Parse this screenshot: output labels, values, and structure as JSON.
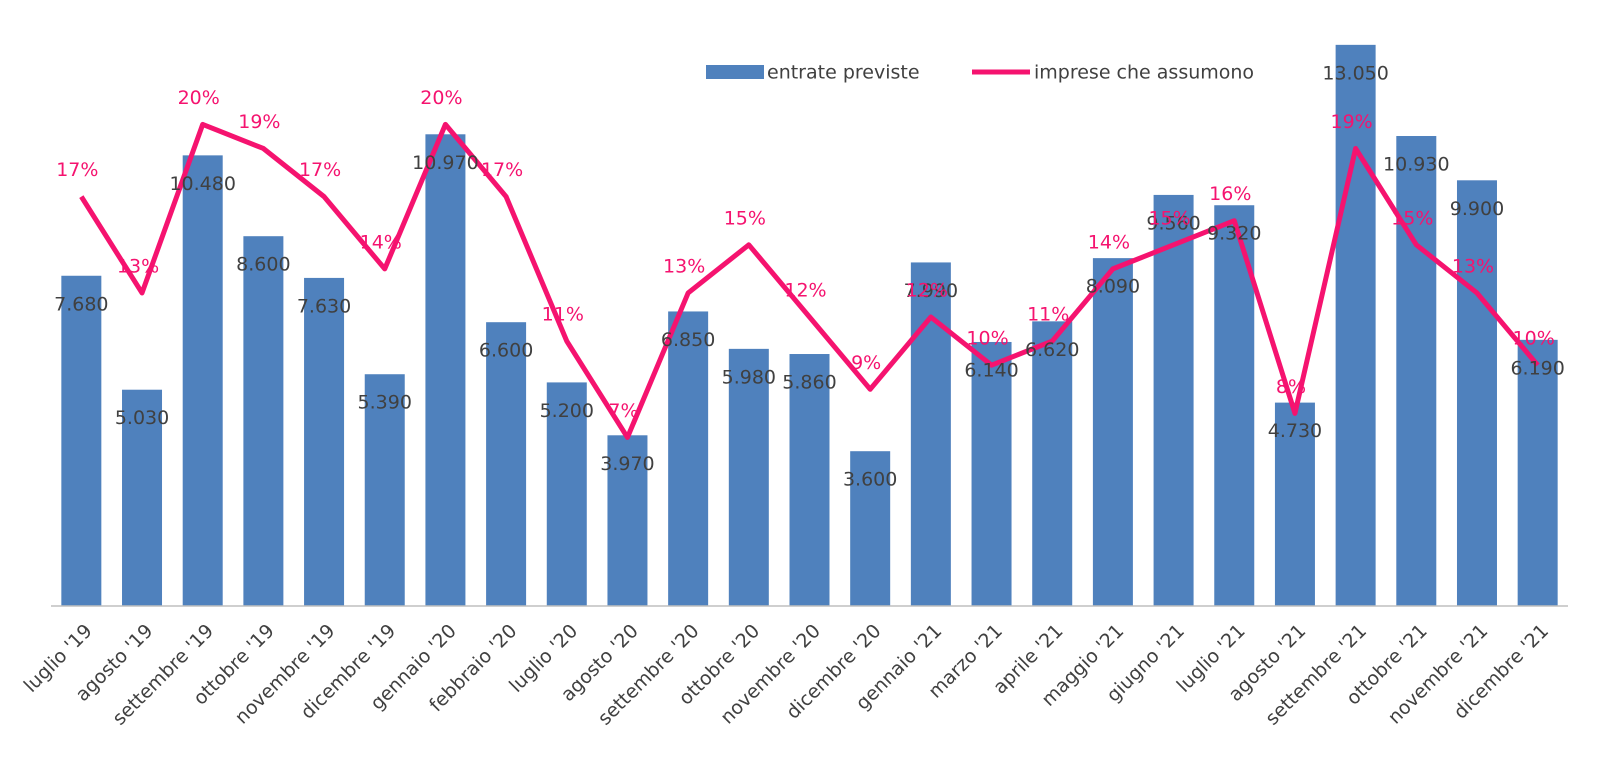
{
  "chart_data": {
    "type": "bar-line",
    "categories": [
      "luglio '19",
      "agosto '19",
      "settembre '19",
      "ottobre '19",
      "novembre '19",
      "dicembre '19",
      "gennaio '20",
      "febbraio '20",
      "luglio '20",
      "agosto '20",
      "settembre '20",
      "ottobre '20",
      "novembre '20",
      "dicembre '20",
      "gennaio '21",
      "marzo '21",
      "aprile '21",
      "maggio '21",
      "giugno '21",
      "luglio '21",
      "agosto '21",
      "settembre '21",
      "ottobre '21",
      "novembre '21",
      "dicembre '21"
    ],
    "series": [
      {
        "name": "entrate previste",
        "type": "bar",
        "color": "#4f81bd",
        "values": [
          7680,
          5030,
          10480,
          8600,
          7630,
          5390,
          10970,
          6600,
          5200,
          3970,
          6850,
          5980,
          5860,
          3600,
          7990,
          6140,
          6620,
          8090,
          9560,
          9320,
          4730,
          13050,
          10930,
          9900,
          6190
        ],
        "value_labels": [
          "7.680",
          "5.030",
          "10.480",
          "8.600",
          "7.630",
          "5.390",
          "10.970",
          "6.600",
          "5.200",
          "3.970",
          "6.850",
          "5.980",
          "5.860",
          "3.600",
          "7.990",
          "6.140",
          "6.620",
          "8.090",
          "9.560",
          "9.320",
          "4.730",
          "13.050",
          "10.930",
          "9.900",
          "6.190"
        ]
      },
      {
        "name": "imprese che assumono",
        "type": "line",
        "axis": "y2",
        "color": "#f5136f",
        "values": [
          17,
          13,
          20,
          19,
          17,
          14,
          20,
          17,
          11,
          7,
          13,
          15,
          12,
          9,
          12,
          10,
          11,
          14,
          15,
          16,
          8,
          19,
          15,
          13,
          10
        ],
        "value_labels": [
          "17%",
          "13%",
          "20%",
          "19%",
          "17%",
          "14%",
          "20%",
          "17%",
          "11%",
          "7%",
          "13%",
          "15%",
          "12%",
          "9%",
          "12%",
          "10%",
          "11%",
          "14%",
          "15%",
          "16%",
          "8%",
          "19%",
          "15%",
          "13%",
          "10%"
        ]
      }
    ],
    "ylim": [
      0,
      14000
    ],
    "y2lim": [
      0,
      25
    ],
    "legend": "top"
  }
}
